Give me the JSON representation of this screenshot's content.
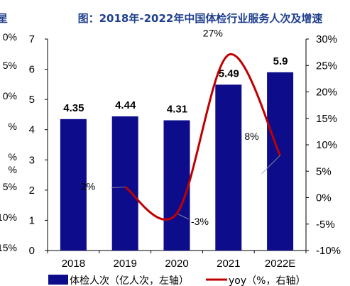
{
  "chart_data": {
    "type": "bar+line",
    "title": "图：2018年-2022年中国体检行业服务人次及增速",
    "categories": [
      "2018",
      "2019",
      "2020",
      "2021",
      "2022E"
    ],
    "series": [
      {
        "name": "体检人次（亿人次，左轴）",
        "type": "bar",
        "axis": "left",
        "values": [
          4.35,
          4.44,
          4.31,
          5.49,
          5.9
        ],
        "labels": [
          "4.35",
          "4.44",
          "4.31",
          "5.49",
          "5.9"
        ],
        "color": "#0d0d8c"
      },
      {
        "name": "yoy（%，右轴）",
        "type": "line",
        "axis": "right",
        "values": [
          null,
          2,
          -3,
          27,
          8
        ],
        "labels": [
          "",
          "2%",
          "-3%",
          "27%",
          "8%"
        ],
        "color": "#c00000"
      }
    ],
    "left_axis": {
      "ylim": [
        0,
        7
      ],
      "ticks": [
        "0",
        "1",
        "2",
        "3",
        "4",
        "5",
        "6",
        "7"
      ]
    },
    "right_axis": {
      "ylim": [
        -10,
        30
      ],
      "ticks": [
        "-10%",
        "-5%",
        "0%",
        "5%",
        "10%",
        "15%",
        "20%",
        "25%",
        "30%"
      ]
    },
    "legend_position": "bottom"
  },
  "left_cut_off": {
    "title_fragment": "星",
    "labels": [
      "0%",
      "5%",
      "0%",
      "%",
      "%",
      "%",
      "5%",
      "10%",
      "15%"
    ]
  }
}
